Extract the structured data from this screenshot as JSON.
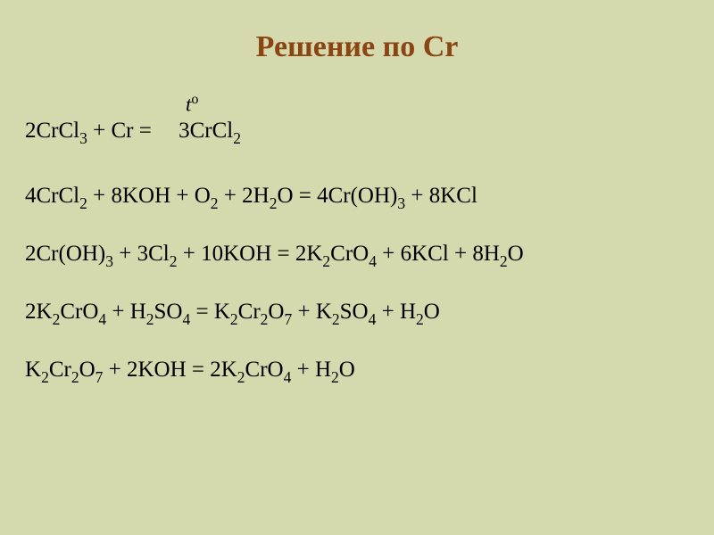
{
  "slide": {
    "title": "Решение по Cr",
    "background_color": "#d5d9ae",
    "title_color": "#8b4513",
    "text_color": "#000000",
    "title_fontsize": 34,
    "body_fontsize": 25,
    "temp_annotation": {
      "base": "t",
      "superscript": "o"
    },
    "equations": [
      {
        "parts": [
          {
            "t": "2CrCl"
          },
          {
            "t": "3",
            "sub": true
          },
          {
            "t": " +  Cr  ="
          },
          {
            "gap": true
          },
          {
            "t": " 3CrCl"
          },
          {
            "t": "2",
            "sub": true
          }
        ],
        "has_temp": true
      },
      {
        "parts": [
          {
            "t": "4CrCl"
          },
          {
            "t": "2",
            "sub": true
          },
          {
            "t": " + 8KOH  + O"
          },
          {
            "t": "2",
            "sub": true
          },
          {
            "t": "  + 2H"
          },
          {
            "t": "2",
            "sub": true
          },
          {
            "t": "O  =  4Cr(OH)"
          },
          {
            "t": "3",
            "sub": true
          },
          {
            "t": " + 8KCl"
          }
        ]
      },
      {
        "parts": [
          {
            "t": "2Cr(OH)"
          },
          {
            "t": "3",
            "sub": true
          },
          {
            "t": " + 3Cl"
          },
          {
            "t": "2",
            "sub": true
          },
          {
            "t": " + 10KOH =  2K"
          },
          {
            "t": "2",
            "sub": true
          },
          {
            "t": "CrO"
          },
          {
            "t": "4",
            "sub": true
          },
          {
            "t": " + 6KCl + 8H"
          },
          {
            "t": "2",
            "sub": true
          },
          {
            "t": "O"
          }
        ]
      },
      {
        "parts": [
          {
            "t": "2K"
          },
          {
            "t": "2",
            "sub": true
          },
          {
            "t": "CrO"
          },
          {
            "t": "4",
            "sub": true
          },
          {
            "t": " + H"
          },
          {
            "t": "2",
            "sub": true
          },
          {
            "t": "SO"
          },
          {
            "t": "4",
            "sub": true
          },
          {
            "t": " = K"
          },
          {
            "t": "2",
            "sub": true
          },
          {
            "t": "Cr"
          },
          {
            "t": "2",
            "sub": true
          },
          {
            "t": "O"
          },
          {
            "t": "7",
            "sub": true
          },
          {
            "t": " + K"
          },
          {
            "t": "2",
            "sub": true
          },
          {
            "t": "SO"
          },
          {
            "t": "4",
            "sub": true
          },
          {
            "t": " + H"
          },
          {
            "t": "2",
            "sub": true
          },
          {
            "t": "O"
          }
        ]
      },
      {
        "parts": [
          {
            "t": "K"
          },
          {
            "t": "2",
            "sub": true
          },
          {
            "t": "Cr"
          },
          {
            "t": "2",
            "sub": true
          },
          {
            "t": "O"
          },
          {
            "t": "7",
            "sub": true
          },
          {
            "t": " + 2KOH = 2K"
          },
          {
            "t": "2",
            "sub": true
          },
          {
            "t": "CrO"
          },
          {
            "t": "4",
            "sub": true
          },
          {
            "t": " + H"
          },
          {
            "t": "2",
            "sub": true
          },
          {
            "t": "O"
          }
        ]
      }
    ]
  }
}
